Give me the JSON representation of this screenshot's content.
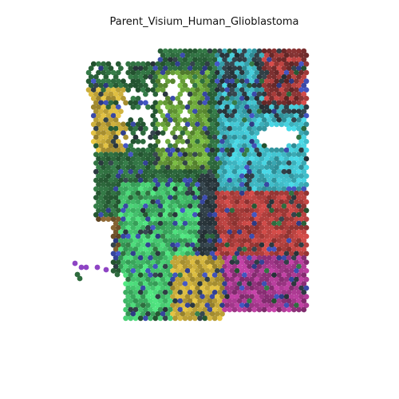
{
  "figure": {
    "title": "Parent_Visium_Human_Glioblastoma"
  },
  "spot_palette": {
    "teal_cyan": "#3fb8c4",
    "red_brick": "#b5413f",
    "magenta": "#a8398f",
    "light_green": "#45c46e",
    "dark_green": "#2e6b3e",
    "olive_green": "#6aa23a",
    "mustard": "#c4a83a",
    "blue_navy": "#3a4aa8",
    "dark_slate": "#2f3d44",
    "purple": "#8e44c4",
    "brown": "#7a5a2e",
    "dark_red": "#7a2f2f"
  }
}
